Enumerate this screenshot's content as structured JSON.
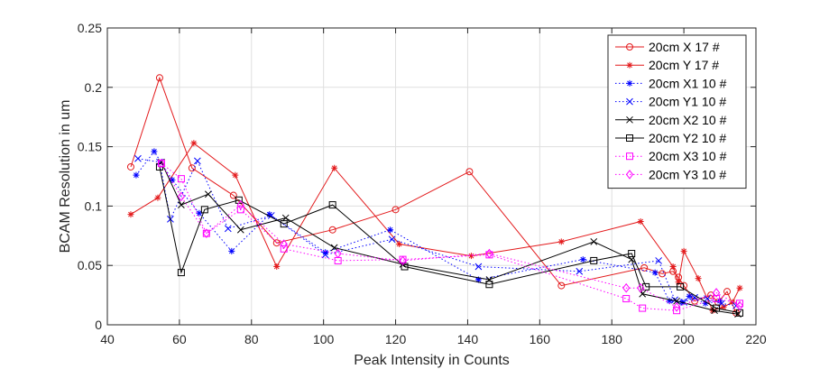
{
  "chart_data": {
    "type": "line",
    "title": "",
    "xlabel": "Peak Intensity in Counts",
    "ylabel": "BCAM Resolution in um",
    "xlim": [
      40,
      220
    ],
    "ylim": [
      0,
      0.25
    ],
    "xticks": [
      40,
      60,
      80,
      100,
      120,
      140,
      160,
      180,
      200,
      220
    ],
    "yticks": [
      0,
      0.05,
      0.1,
      0.15,
      0.2,
      0.25
    ],
    "xtick_labels": [
      "40",
      "60",
      "80",
      "100",
      "120",
      "140",
      "160",
      "180",
      "200",
      "220"
    ],
    "ytick_labels": [
      "0",
      "0.05",
      "0.1",
      "0.15",
      "0.2",
      "0.25"
    ],
    "grid": true,
    "legend_position": "top-right",
    "series": [
      {
        "name": "20cm X 17 #",
        "color": "#e31a1c",
        "line": "solid",
        "marker": "circle",
        "x": [
          46.5,
          54.5,
          63.5,
          75,
          87,
          102.5,
          120,
          140.5,
          166,
          189,
          194,
          197,
          198.5,
          200,
          203,
          207.5,
          209.5,
          212,
          214.5
        ],
        "y": [
          0.133,
          0.208,
          0.132,
          0.109,
          0.069,
          0.08,
          0.097,
          0.129,
          0.033,
          0.048,
          0.043,
          0.045,
          0.04,
          0.033,
          0.02,
          0.025,
          0.019,
          0.028,
          0.01
        ]
      },
      {
        "name": "20cm Y 17 #",
        "color": "#e31a1c",
        "line": "solid",
        "marker": "star",
        "x": [
          46.5,
          54,
          64,
          75.5,
          87,
          103,
          121,
          141,
          166,
          188,
          197,
          198.5,
          200,
          204,
          208,
          211,
          213.5,
          215.5
        ],
        "y": [
          0.093,
          0.107,
          0.153,
          0.126,
          0.049,
          0.132,
          0.068,
          0.058,
          0.07,
          0.087,
          0.049,
          0.036,
          0.062,
          0.039,
          0.012,
          0.015,
          0.019,
          0.031
        ]
      },
      {
        "name": "20cm X1 10 #",
        "color": "#0000ff",
        "line": "dotted",
        "marker": "asterisk",
        "x": [
          48,
          53,
          58,
          65.5,
          74.5,
          85,
          100.5,
          118.5,
          143,
          172,
          192,
          196,
          199.5,
          201.5,
          206,
          210
        ],
        "y": [
          0.126,
          0.146,
          0.122,
          0.094,
          0.062,
          0.093,
          0.061,
          0.08,
          0.038,
          0.055,
          0.044,
          0.02,
          0.019,
          0.024,
          0.018,
          0.02
        ]
      },
      {
        "name": "20cm Y1 10 #",
        "color": "#0000ff",
        "line": "dotted",
        "marker": "x",
        "x": [
          48.5,
          54.5,
          57.5,
          65,
          73.5,
          85.5,
          100.5,
          119,
          143,
          171,
          193,
          197.5,
          200,
          203,
          206.5,
          210.5,
          214.5
        ],
        "y": [
          0.14,
          0.137,
          0.089,
          0.138,
          0.081,
          0.092,
          0.059,
          0.072,
          0.049,
          0.045,
          0.054,
          0.021,
          0.019,
          0.023,
          0.022,
          0.018,
          0.016
        ]
      },
      {
        "name": "20cm X2 10 #",
        "color": "#000000",
        "line": "solid",
        "marker": "x",
        "x": [
          55,
          60.5,
          68,
          77,
          89.5,
          103,
          122,
          146,
          175,
          185.5,
          188.5,
          198,
          208.5,
          215
        ],
        "y": [
          0.137,
          0.101,
          0.11,
          0.08,
          0.09,
          0.065,
          0.051,
          0.038,
          0.07,
          0.055,
          0.026,
          0.02,
          0.012,
          0.009
        ]
      },
      {
        "name": "20cm Y2 10 #",
        "color": "#000000",
        "line": "solid",
        "marker": "square",
        "x": [
          54.5,
          60.5,
          67,
          76.5,
          89,
          102.5,
          122.5,
          146,
          175,
          185.5,
          189.5,
          199,
          209,
          215.5
        ],
        "y": [
          0.133,
          0.044,
          0.097,
          0.105,
          0.085,
          0.101,
          0.049,
          0.034,
          0.054,
          0.06,
          0.032,
          0.032,
          0.014,
          0.01
        ]
      },
      {
        "name": "20cm X3 10 #",
        "color": "#ff00ff",
        "line": "dotted",
        "marker": "square",
        "x": [
          55,
          60.5,
          67.5,
          77,
          89,
          104,
          122,
          146,
          184,
          188.5,
          198,
          209,
          215.5
        ],
        "y": [
          0.136,
          0.123,
          0.077,
          0.097,
          0.064,
          0.054,
          0.055,
          0.059,
          0.022,
          0.014,
          0.012,
          0.022,
          0.018
        ]
      },
      {
        "name": "20cm Y3 10 #",
        "color": "#ff00ff",
        "line": "dotted",
        "marker": "diamond",
        "x": [
          55,
          60.5,
          67.5,
          77,
          89,
          104,
          122,
          146,
          184,
          188,
          198,
          209,
          215.5
        ],
        "y": [
          0.136,
          0.108,
          0.077,
          0.101,
          0.068,
          0.06,
          0.054,
          0.06,
          0.031,
          0.031,
          0.015,
          0.027,
          0.016
        ]
      }
    ]
  }
}
